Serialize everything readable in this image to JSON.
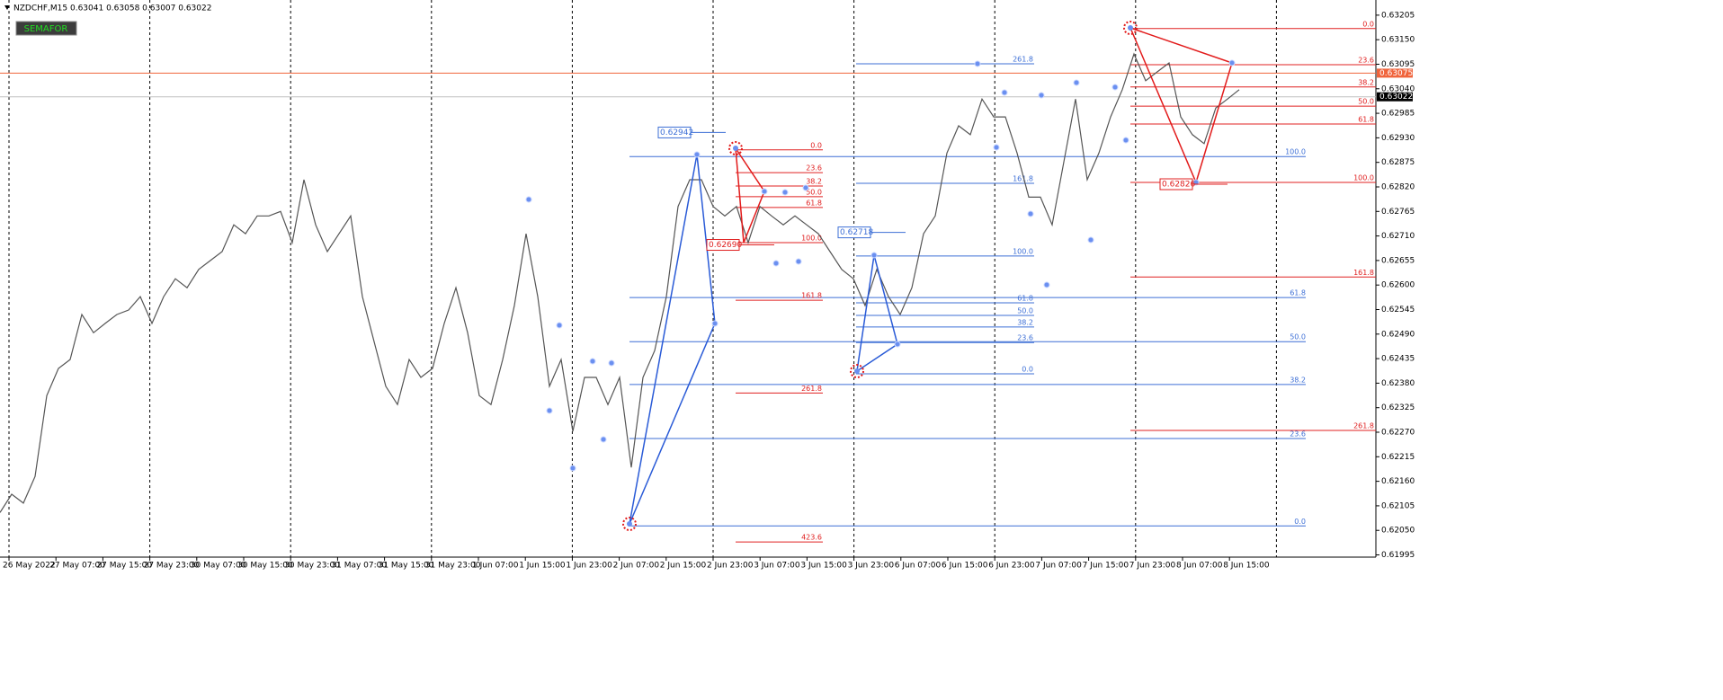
{
  "chart_data": {
    "type": "line",
    "header": "NZDCHF,M15  0.63041 0.63058 0.63007 0.63022",
    "button": "SEMAFOR",
    "categories": [
      "26 May 2022",
      "27 May 07:00",
      "27 May 15:00",
      "27 May 23:00",
      "30 May 07:00",
      "30 May 15:00",
      "30 May 23:00",
      "31 May 07:00",
      "31 May 15:00",
      "31 May 23:00",
      "1 Jun 07:00",
      "1 Jun 15:00",
      "1 Jun 23:00",
      "2 Jun 07:00",
      "2 Jun 15:00",
      "2 Jun 23:00",
      "3 Jun 07:00",
      "3 Jun 15:00",
      "3 Jun 23:00",
      "6 Jun 07:00",
      "6 Jun 15:00",
      "6 Jun 23:00",
      "7 Jun 07:00",
      "7 Jun 15:00",
      "7 Jun 23:00",
      "8 Jun 07:00",
      "8 Jun 15:00"
    ],
    "price": {
      "color": "#555555",
      "values": [
        0.6209,
        0.62131,
        0.62111,
        0.62171,
        0.62352,
        0.62413,
        0.62433,
        0.62534,
        0.62493,
        0.62514,
        0.62534,
        0.62544,
        0.62574,
        0.62514,
        0.62574,
        0.62614,
        0.62594,
        0.62635,
        0.62655,
        0.62675,
        0.62735,
        0.62715,
        0.62755,
        0.62755,
        0.62765,
        0.62695,
        0.62836,
        0.62735,
        0.62675,
        0.62715,
        0.62755,
        0.62574,
        0.62473,
        0.62373,
        0.62332,
        0.62433,
        0.62393,
        0.62413,
        0.62514,
        0.62594,
        0.62493,
        0.62352,
        0.62332,
        0.62433,
        0.62554,
        0.62715,
        0.62574,
        0.62373,
        0.62433,
        0.62272,
        0.62393,
        0.62393,
        0.62332,
        0.62393,
        0.62191,
        0.62393,
        0.62453,
        0.62574,
        0.62776,
        0.62836,
        0.62836,
        0.62776,
        0.62755,
        0.62776,
        0.62695,
        0.62776,
        0.62755,
        0.62735,
        0.62755,
        0.62735,
        0.62715,
        0.62675,
        0.62635,
        0.62614,
        0.62554,
        0.62635,
        0.62574,
        0.62534,
        0.62594,
        0.62715,
        0.62755,
        0.62896,
        0.62957,
        0.62937,
        0.63017,
        0.62977,
        0.62977,
        0.62896,
        0.62797,
        0.62797,
        0.62735,
        0.62876,
        0.63017,
        0.62836,
        0.62896,
        0.62977,
        0.63038,
        0.63118,
        0.63058,
        0.63078,
        0.63098,
        0.62977,
        0.62937,
        0.62917,
        0.62997,
        0.63017,
        0.63038
      ]
    },
    "ylim": [
      0.6199,
      0.63239
    ],
    "yticks": [
      0.63205,
      {
        "value": 0.6315,
        "label": "0.63150"
      },
      0.63095,
      {
        "value": 0.6304,
        "label": "0.63040"
      },
      0.62985,
      {
        "value": 0.6293,
        "label": "0.62930"
      },
      0.62875,
      {
        "value": 0.6282,
        "label": "0.62820"
      },
      0.62765,
      {
        "value": 0.6271,
        "label": "0.62710"
      },
      0.62655,
      {
        "value": 0.626,
        "label": "0.62600"
      },
      0.62545,
      {
        "value": 0.6249,
        "label": "0.62490"
      },
      0.62435,
      {
        "value": 0.6238,
        "label": "0.62380"
      },
      0.62325,
      {
        "value": 0.6227,
        "label": "0.62270"
      },
      0.62215,
      {
        "value": 0.6216,
        "label": "0.62160"
      },
      0.62105,
      {
        "value": 0.6205,
        "label": "0.62050"
      },
      0.61995
    ],
    "price_levels": [
      {
        "value": 0.63075,
        "color": "#f0643c"
      },
      {
        "value": 0.63022,
        "color": "#000000"
      }
    ],
    "fib_sets": [
      {
        "color": "#3d6fd6",
        "levels": [
          {
            "value": 0.6206,
            "label": "0.0"
          },
          {
            "value": 0.62256,
            "label": "23.6"
          },
          {
            "value": 0.62377,
            "label": "38.2"
          },
          {
            "value": 0.62473,
            "label": "50.0"
          },
          {
            "value": 0.62572,
            "label": "61.8"
          },
          {
            "value": 0.62888,
            "label": "100.0"
          }
        ]
      },
      {
        "color": "#3d6fd6",
        "levels": [
          {
            "value": 0.62401,
            "label": "0.0"
          },
          {
            "value": 0.62471,
            "label": "23.6"
          },
          {
            "value": 0.62506,
            "label": "38.2"
          },
          {
            "value": 0.62532,
            "label": "50.0"
          },
          {
            "value": 0.6256,
            "label": "61.8"
          },
          {
            "value": 0.62665,
            "label": "100.0"
          },
          {
            "value": 0.62828,
            "label": "161.8"
          },
          {
            "value": 0.63096,
            "label": "261.8"
          }
        ]
      },
      {
        "color": "#e02020",
        "levels": [
          {
            "value": 0.62903,
            "label": "0.0"
          },
          {
            "value": 0.62852,
            "label": "23.6"
          },
          {
            "value": 0.62822,
            "label": "38.2"
          },
          {
            "value": 0.62798,
            "label": "50.0"
          },
          {
            "value": 0.62774,
            "label": "61.8"
          },
          {
            "value": 0.62695,
            "label": "100.0"
          },
          {
            "value": 0.62566,
            "label": "161.8"
          },
          {
            "value": 0.62358,
            "label": "261.8"
          },
          {
            "value": 0.62024,
            "label": "423.6"
          }
        ]
      },
      {
        "color": "#e02020",
        "levels": [
          {
            "value": 0.63175,
            "label": "0.0"
          },
          {
            "value": 0.63094,
            "label": "23.6"
          },
          {
            "value": 0.63044,
            "label": "38.2"
          },
          {
            "value": 0.63001,
            "label": "50.0"
          },
          {
            "value": 0.62961,
            "label": "61.8"
          },
          {
            "value": 0.6283,
            "label": "100.0"
          },
          {
            "value": 0.62618,
            "label": "161.8"
          },
          {
            "value": 0.62274,
            "label": "261.8"
          }
        ]
      }
    ],
    "price_tags": [
      {
        "value": 0.62942,
        "color": "#3d6fd6"
      },
      {
        "value": 0.62718,
        "color": "#3d6fd6"
      },
      {
        "value": 0.6269,
        "label": "0.62690",
        "color": "#e02020"
      },
      {
        "value": 0.62826,
        "color": "#e02020"
      }
    ]
  }
}
